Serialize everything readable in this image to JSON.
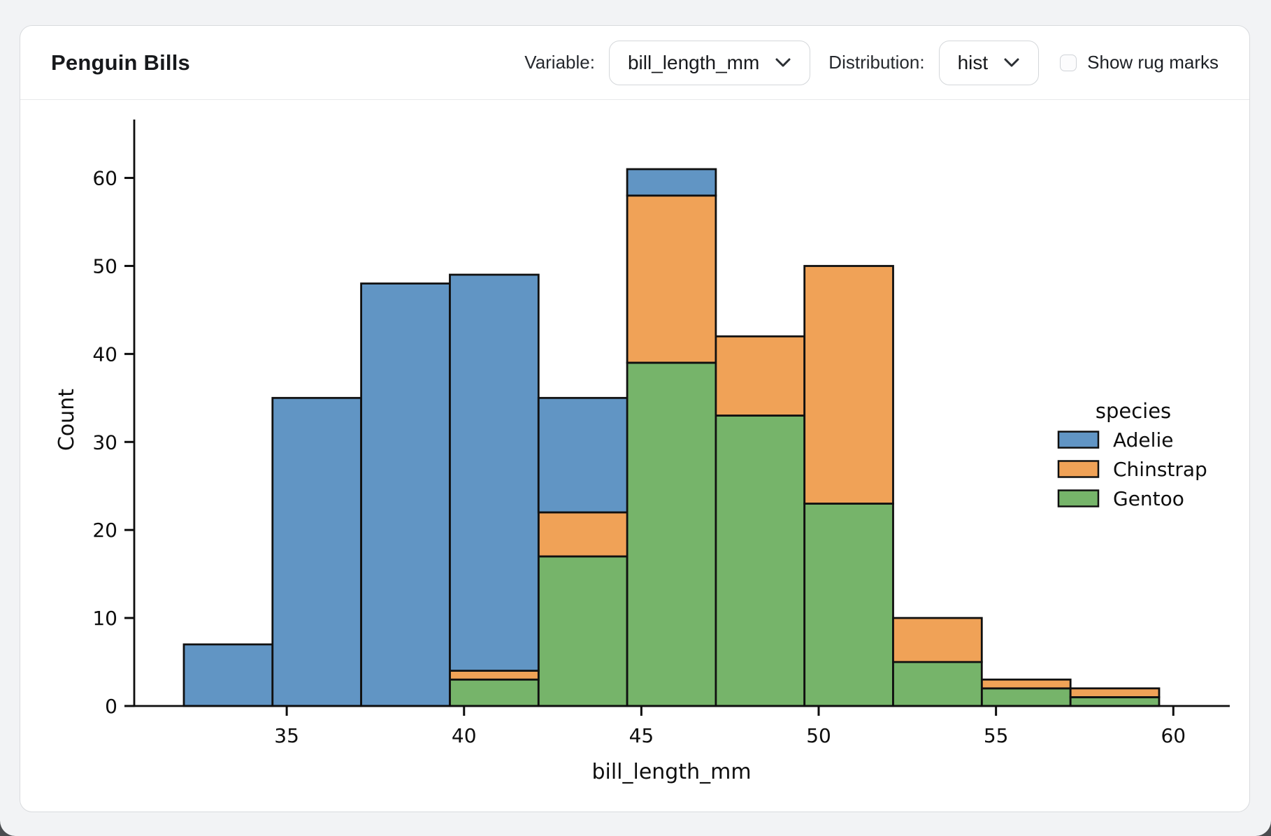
{
  "header": {
    "title": "Penguin Bills",
    "variable_label": "Variable:",
    "variable_value": "bill_length_mm",
    "distribution_label": "Distribution:",
    "distribution_value": "hist",
    "rug_label": "Show rug marks",
    "rug_checked": false
  },
  "colors": {
    "adelie": "#6195c4",
    "chinstrap": "#f0a257",
    "gentoo": "#76b46a",
    "bar_edge": "#101010",
    "axis": "#0e0e0e"
  },
  "chart_data": {
    "type": "bar",
    "subtype": "stacked-histogram",
    "title": "",
    "xlabel": "bill_length_mm",
    "ylabel": "Count",
    "bin_edges": [
      32.1,
      34.6,
      37.1,
      39.6,
      42.1,
      44.6,
      47.1,
      49.6,
      52.1,
      54.6,
      57.1,
      59.6
    ],
    "series": [
      {
        "name": "Gentoo",
        "color_key": "gentoo",
        "values": [
          0,
          0,
          0,
          3,
          17,
          39,
          33,
          23,
          5,
          2,
          1
        ]
      },
      {
        "name": "Chinstrap",
        "color_key": "chinstrap",
        "values": [
          0,
          0,
          0,
          1,
          5,
          19,
          9,
          27,
          5,
          1,
          1
        ]
      },
      {
        "name": "Adelie",
        "color_key": "adelie",
        "values": [
          7,
          35,
          48,
          45,
          13,
          3,
          0,
          0,
          0,
          0,
          0
        ]
      }
    ],
    "bin_totals": [
      7,
      35,
      48,
      49,
      35,
      61,
      42,
      50,
      10,
      3,
      2
    ],
    "x_ticks": [
      35,
      40,
      45,
      50,
      55,
      60
    ],
    "y_ticks": [
      0,
      10,
      20,
      30,
      40,
      50,
      60
    ],
    "xlim": [
      30.7,
      61.0
    ],
    "ylim": [
      0,
      66
    ],
    "grid": false,
    "legend": {
      "title": "species",
      "position": "right",
      "entries": [
        {
          "label": "Adelie",
          "color_key": "adelie"
        },
        {
          "label": "Chinstrap",
          "color_key": "chinstrap"
        },
        {
          "label": "Gentoo",
          "color_key": "gentoo"
        }
      ]
    }
  }
}
